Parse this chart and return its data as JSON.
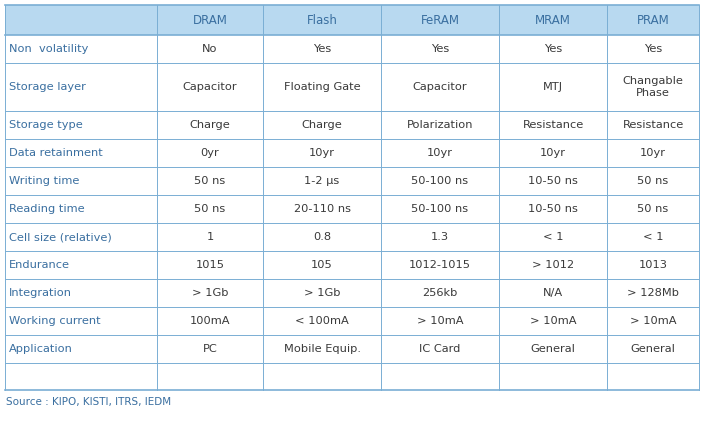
{
  "headers": [
    "",
    "DRAM",
    "Flash",
    "FeRAM",
    "MRAM",
    "PRAM"
  ],
  "rows": [
    [
      "Non  volatility",
      "No",
      "Yes",
      "Yes",
      "Yes",
      "Yes"
    ],
    [
      "Storage layer",
      "Capacitor",
      "Floating Gate",
      "Capacitor",
      "MTJ",
      "Changable\nPhase"
    ],
    [
      "Storage type",
      "Charge",
      "Charge",
      "Polarization",
      "Resistance",
      "Resistance"
    ],
    [
      "Data retainment",
      "0yr",
      "10yr",
      "10yr",
      "10yr",
      "10yr"
    ],
    [
      "Writing time",
      "50 ns",
      "1-2 μs",
      "50-100 ns",
      "10-50 ns",
      "50 ns"
    ],
    [
      "Reading time",
      "50 ns",
      "20-110 ns",
      "50-100 ns",
      "10-50 ns",
      "50 ns"
    ],
    [
      "Cell size (relative)",
      "1",
      "0.8",
      "1.3",
      "< 1",
      "< 1"
    ],
    [
      "Endurance",
      "1015",
      "105",
      "1012-1015",
      "> 1012",
      "1013"
    ],
    [
      "Integration",
      "> 1Gb",
      "> 1Gb",
      "256kb",
      "N/A",
      "> 128Mb"
    ],
    [
      "Working current",
      "100mA",
      "< 100mA",
      "> 10mA",
      "> 10mA",
      "> 10mA"
    ],
    [
      "Application",
      "PC",
      "Mobile Equip.",
      "IC Card",
      "General",
      "General"
    ]
  ],
  "source_text": "Source : KIPO, KISTI, ITRS, IEDM",
  "header_bg_color": "#b8d9f0",
  "header_text_color": "#3a6fa0",
  "row_label_color": "#3a6fa0",
  "row_text_color": "#3a3a3a",
  "border_color": "#7aaed4",
  "fig_width": 7.04,
  "fig_height": 4.3,
  "font_size": 8.2,
  "header_font_size": 8.5,
  "source_font_size": 7.5
}
